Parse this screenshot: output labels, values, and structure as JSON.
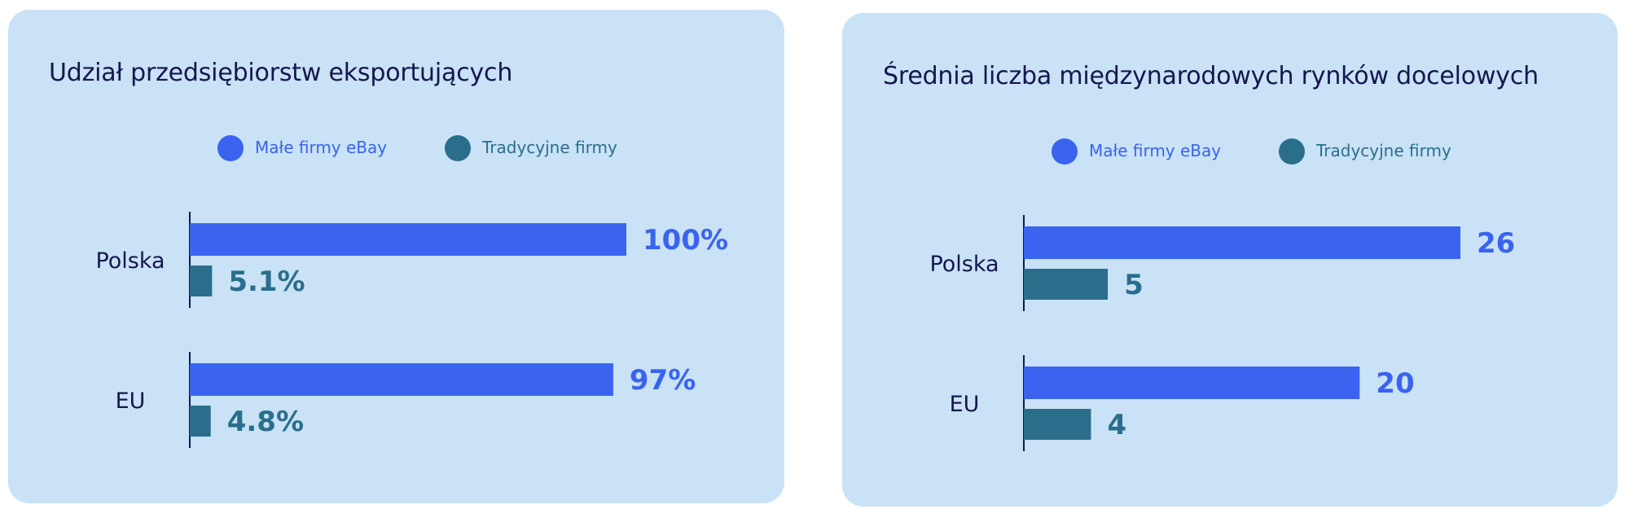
{
  "colors": {
    "ebay": "#3a63ef",
    "traditional": "#2a6e8c",
    "axis": "#14174e",
    "panel": "#c9e2f6"
  },
  "legend": [
    {
      "label": "Małe firmy eBay",
      "color": "#3a63ef",
      "icon": "dot-icon"
    },
    {
      "label": "Tradycyjne firmy",
      "color": "#2a6e8c",
      "icon": "dot-icon"
    }
  ],
  "chart_data": [
    {
      "type": "bar",
      "orientation": "horizontal",
      "title": "Udział przedsiębiorstw eksportujących",
      "categories": [
        "Polska",
        "EU"
      ],
      "series": [
        {
          "name": "Małe firmy eBay",
          "values": [
            100,
            97
          ],
          "labels": [
            "100%",
            "97%"
          ]
        },
        {
          "name": "Tradycyjne firmy",
          "values": [
            5.1,
            4.8
          ],
          "labels": [
            "5.1%",
            "4.8%"
          ]
        }
      ],
      "xlim": [
        0,
        100
      ],
      "grid": false,
      "legend_position": "top"
    },
    {
      "type": "bar",
      "orientation": "horizontal",
      "title": "Średnia liczba międzynarodowych rynków docelowych",
      "categories": [
        "Polska",
        "EU"
      ],
      "series": [
        {
          "name": "Małe firmy eBay",
          "values": [
            26,
            20
          ],
          "labels": [
            "26",
            "20"
          ]
        },
        {
          "name": "Tradycyjne firmy",
          "values": [
            5,
            4
          ],
          "labels": [
            "5",
            "4"
          ]
        }
      ],
      "xlim": [
        0,
        26
      ],
      "grid": false,
      "legend_position": "top"
    }
  ]
}
